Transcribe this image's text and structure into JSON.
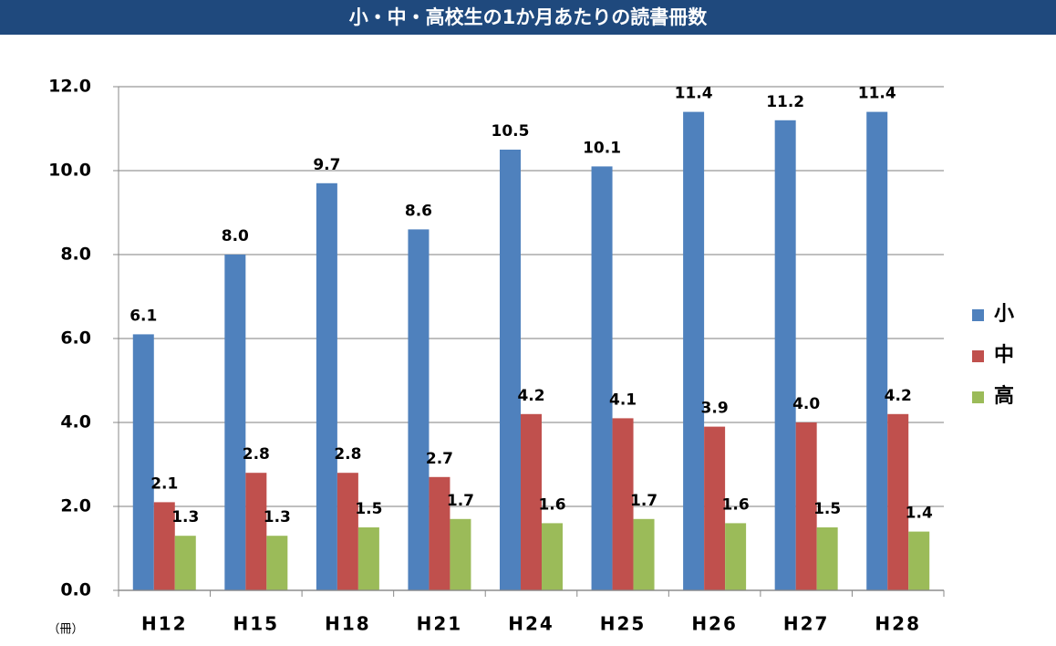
{
  "chart_data": {
    "type": "bar",
    "title": "小・中・高校生の1か月あたりの読書冊数",
    "y_unit": "（冊）",
    "categories": [
      "H12",
      "H15",
      "H18",
      "H21",
      "H24",
      "H25",
      "H26",
      "H27",
      "H28"
    ],
    "series": [
      {
        "name": "小",
        "color": "#4f81bd",
        "values": [
          6.1,
          8.0,
          9.7,
          8.6,
          10.5,
          10.1,
          11.4,
          11.2,
          11.4
        ],
        "value_labels": [
          "6.1",
          "8.0",
          "9.7",
          "8.6",
          "10.5",
          "10.1",
          "11.4",
          "11.2",
          "11.4"
        ]
      },
      {
        "name": "中",
        "color": "#c0504d",
        "values": [
          2.1,
          2.8,
          2.8,
          2.7,
          4.2,
          4.1,
          3.9,
          4.0,
          4.2
        ],
        "value_labels": [
          "2.1",
          "2.8",
          "2.8",
          "2.7",
          "4.2",
          "4.1",
          "3.9",
          "4.0",
          "4.2"
        ]
      },
      {
        "name": "高",
        "color": "#9bbb59",
        "values": [
          1.3,
          1.3,
          1.5,
          1.7,
          1.6,
          1.7,
          1.6,
          1.5,
          1.4
        ],
        "value_labels": [
          "1.3",
          "1.3",
          "1.5",
          "1.7",
          "1.6",
          "1.7",
          "1.6",
          "1.5",
          "1.4"
        ]
      }
    ],
    "ylim": [
      0,
      12
    ],
    "yticks": [
      {
        "value": 0,
        "label": "0.0"
      },
      {
        "value": 2,
        "label": "2.0"
      },
      {
        "value": 4,
        "label": "4.0"
      },
      {
        "value": 6,
        "label": "6.0"
      },
      {
        "value": 8,
        "label": "8.0"
      },
      {
        "value": 10,
        "label": "10.0"
      },
      {
        "value": 12,
        "label": "12.0"
      }
    ],
    "grid": true,
    "legend": "right"
  }
}
